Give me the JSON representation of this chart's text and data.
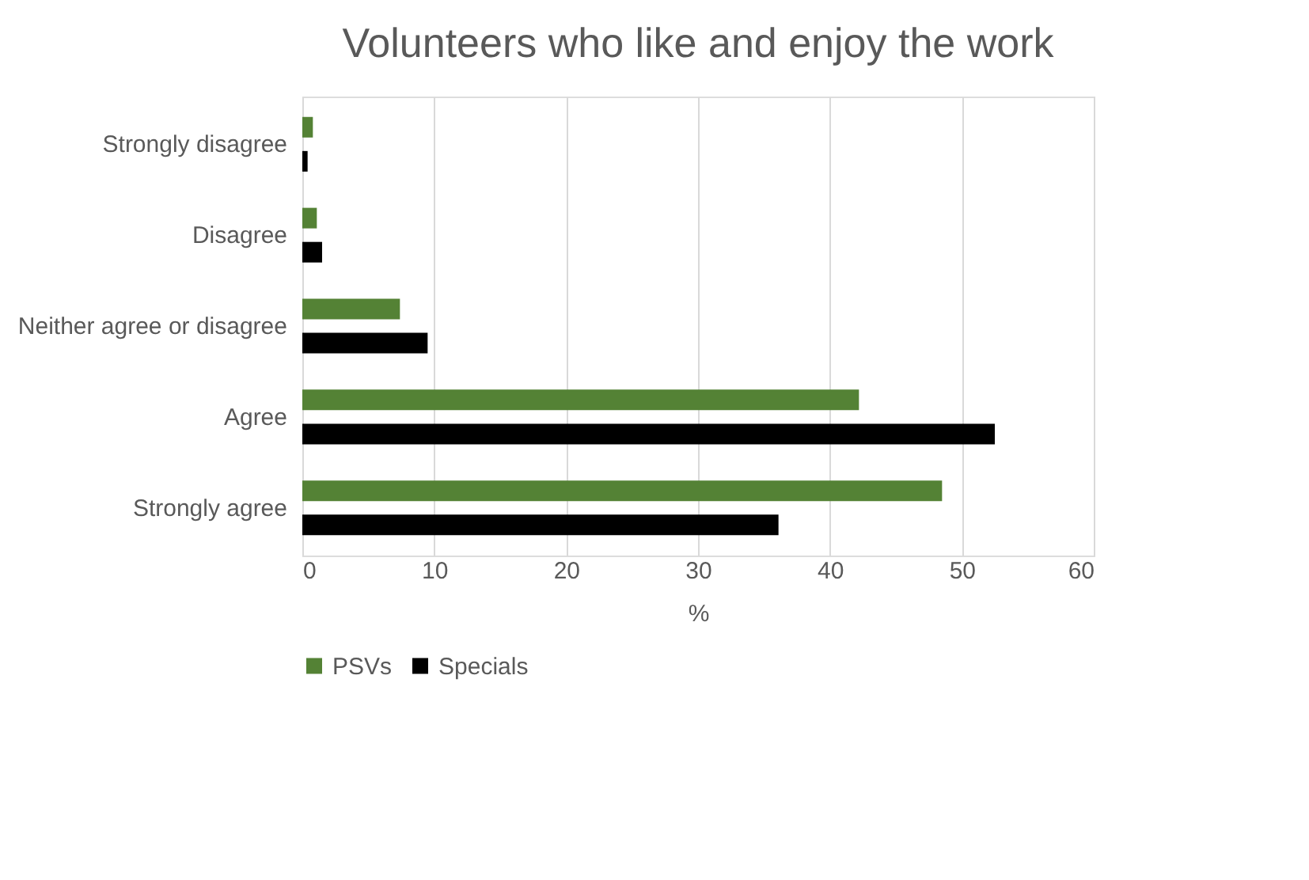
{
  "chart_data": {
    "type": "bar",
    "orientation": "horizontal",
    "title": "Volunteers who like and enjoy the work",
    "xlabel": "%",
    "categories": [
      "Strongly disagree",
      "Disagree",
      "Neither agree or disagree",
      "Agree",
      "Strongly agree"
    ],
    "series": [
      {
        "name": "PSVs",
        "color": "#548235",
        "values": [
          0.8,
          1.1,
          7.4,
          42.2,
          48.5
        ]
      },
      {
        "name": "Specials",
        "color": "#000000",
        "values": [
          0.4,
          1.5,
          9.5,
          52.5,
          36.1
        ]
      }
    ],
    "xlim": [
      0,
      60
    ],
    "xticks": [
      0,
      10,
      20,
      30,
      40,
      50,
      60
    ],
    "grid": "x",
    "legend": "bottom"
  }
}
